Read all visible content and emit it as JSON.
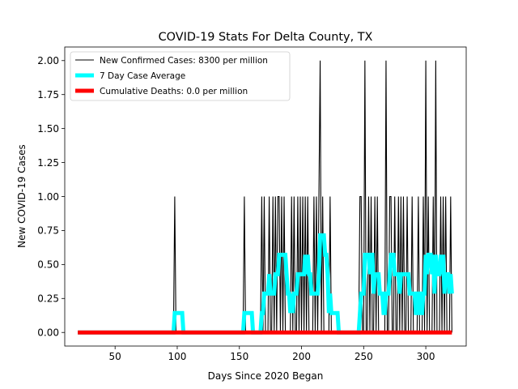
{
  "chart_data": {
    "type": "line",
    "title": "COVID-19 Stats For Delta County, TX",
    "xlabel": "Days Since 2020 Began",
    "ylabel": "New COVID-19 Cases",
    "xlim": [
      9.5,
      332.5
    ],
    "ylim": [
      -0.1,
      2.1
    ],
    "xticks": [
      50,
      100,
      150,
      200,
      250,
      300
    ],
    "xtick_labels": [
      "50",
      "100",
      "150",
      "200",
      "250",
      "300"
    ],
    "yticks": [
      0,
      0.25,
      0.5,
      0.75,
      1.0,
      1.25,
      1.5,
      1.75,
      2.0
    ],
    "ytick_labels": [
      "0.00",
      "0.25",
      "0.50",
      "0.75",
      "1.00",
      "1.25",
      "1.50",
      "1.75",
      "2.00"
    ],
    "grid": false,
    "legend_position": "top-left",
    "day_range": [
      20,
      321
    ],
    "series": [
      {
        "name": "New Confirmed Cases: 8300 per million",
        "color": "#000000",
        "style": "thin",
        "nonzero_days": {
          "98": 1,
          "154": 1,
          "168": 1,
          "170": 1,
          "174": 1,
          "177": 1,
          "179": 1,
          "181": 1,
          "182": 1,
          "184": 1,
          "186": 1,
          "192": 1,
          "194": 1,
          "197": 1,
          "199": 1,
          "201": 1,
          "203": 1,
          "205": 1,
          "210": 1,
          "212": 1,
          "214": 1,
          "215": 2,
          "217": 1,
          "223": 1,
          "247": 1,
          "248": 1,
          "251": 2,
          "254": 1,
          "256": 1,
          "259": 1,
          "261": 1,
          "268": 2,
          "271": 1,
          "272": 1,
          "275": 1,
          "278": 1,
          "280": 1,
          "282": 1,
          "285": 1,
          "289": 1,
          "294": 1,
          "298": 1,
          "300": 2,
          "302": 1,
          "306": 1,
          "308": 2,
          "312": 1,
          "314": 1,
          "316": 1,
          "320": 1
        }
      },
      {
        "name": "7 Day Case Average",
        "color": "#00ffff",
        "style": "thick",
        "window": 7
      },
      {
        "name": "Cumulative Deaths: 0.0 per million",
        "color": "#ff0000",
        "style": "thick",
        "constant": 0
      }
    ]
  }
}
